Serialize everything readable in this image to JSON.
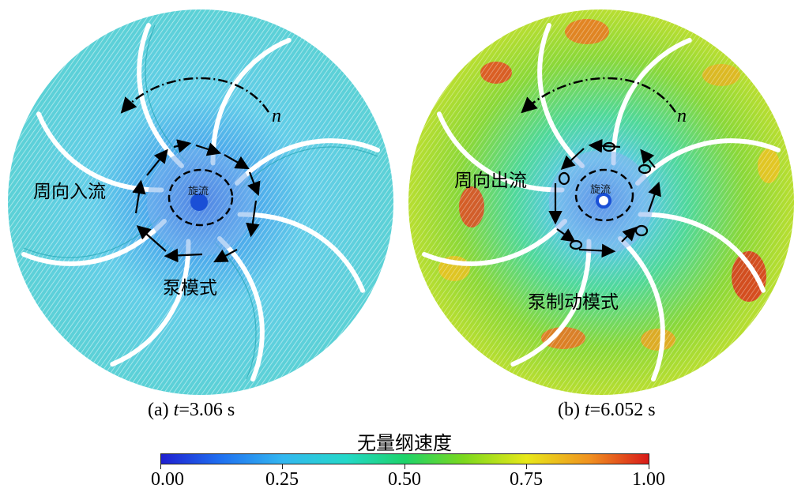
{
  "panel_a": {
    "caption_prefix": "(a) ",
    "caption_var": "t",
    "caption_value": "=3.06 s",
    "label_circ": "周向入流",
    "label_mode": "泵模式",
    "label_center": "旋流",
    "label_n": "n"
  },
  "panel_b": {
    "caption_prefix": "(b) ",
    "caption_var": "t",
    "caption_value": "=6.052 s",
    "label_circ": "周向出流",
    "label_mode": "泵制动模式",
    "label_center": "旋流",
    "label_n": "n"
  },
  "colorbar": {
    "title": "无量纲速度",
    "ticks": [
      "0.00",
      "0.25",
      "0.50",
      "0.75",
      "1.00"
    ],
    "colors": [
      "#1f1fd0",
      "#33b7f0",
      "#1ed36a",
      "#e8e81a",
      "#d81a1a"
    ]
  }
}
